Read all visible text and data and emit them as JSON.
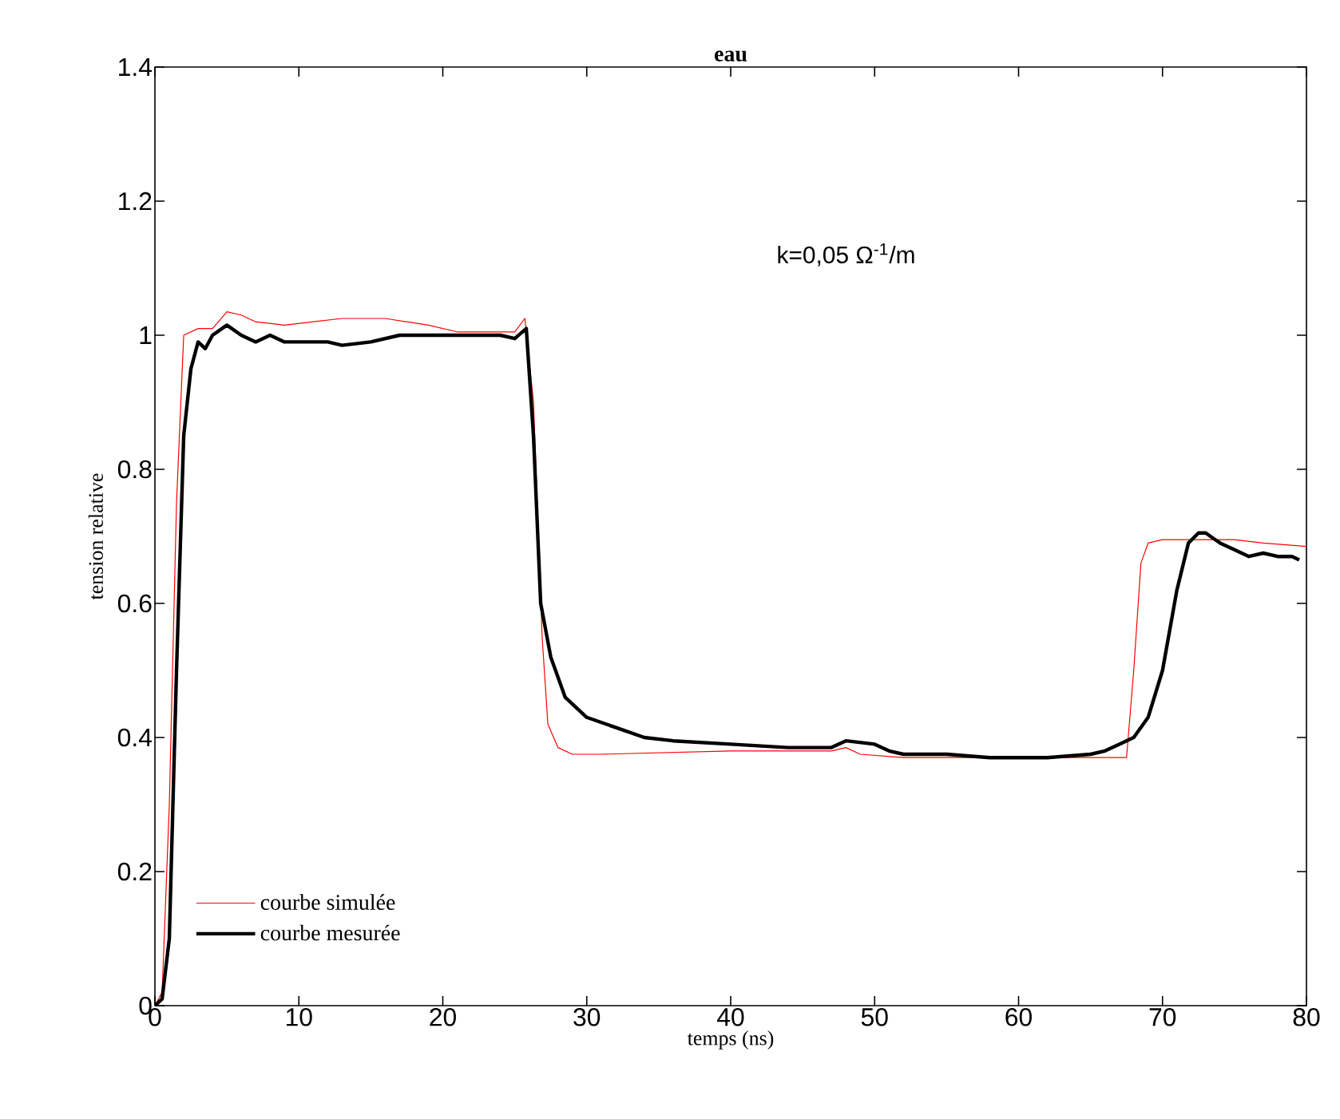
{
  "chart_data": {
    "type": "line",
    "title": "eau",
    "xlabel": "temps (ns)",
    "ylabel": "tension relative",
    "annotations": [
      "k=0,05 Ω$^{-1}$/m"
    ],
    "xlim": [
      0,
      80
    ],
    "ylim": [
      0,
      1.4
    ],
    "xticks": [
      0,
      10,
      20,
      30,
      40,
      50,
      60,
      70,
      80
    ],
    "yticks": [
      0,
      0.2,
      0.4,
      0.6,
      0.8,
      1,
      1.2,
      1.4
    ],
    "grid": false,
    "legend": "bottom left",
    "line_style": "solid",
    "marker": "none",
    "series": [
      {
        "name": "courbe simulée",
        "color": "#ff0000",
        "x": [
          0,
          0.5,
          1,
          1.5,
          2,
          3,
          4,
          5,
          6,
          7,
          9,
          11,
          13,
          16,
          19,
          21,
          24,
          25,
          25.7,
          26.3,
          26.9,
          27.3,
          28,
          29,
          31,
          40,
          47,
          48,
          49,
          52,
          66,
          67.5,
          68,
          68.5,
          69,
          70,
          75,
          77,
          80
        ],
        "values": [
          0,
          0.02,
          0.3,
          0.75,
          1.0,
          1.01,
          1.01,
          1.035,
          1.03,
          1.02,
          1.015,
          1.02,
          1.025,
          1.025,
          1.015,
          1.005,
          1.005,
          1.005,
          1.025,
          0.9,
          0.55,
          0.42,
          0.385,
          0.375,
          0.375,
          0.38,
          0.38,
          0.385,
          0.375,
          0.37,
          0.37,
          0.37,
          0.5,
          0.66,
          0.69,
          0.695,
          0.695,
          0.69,
          0.685
        ]
      },
      {
        "name": "courbe mesurée",
        "color": "#000000",
        "x": [
          0,
          0.5,
          1,
          1.5,
          2,
          2.5,
          3,
          3.5,
          4,
          5,
          6,
          7,
          8,
          9,
          10,
          12,
          13,
          15,
          17,
          20,
          23,
          24,
          25,
          25.8,
          26.3,
          26.8,
          27.5,
          28.5,
          30,
          32,
          34,
          36,
          40,
          44,
          47,
          48,
          50,
          51,
          52,
          55,
          58,
          62,
          65,
          66,
          67,
          68,
          69,
          70,
          71,
          71.8,
          72.5,
          73,
          74,
          75,
          76,
          77,
          78,
          79,
          79.5
        ],
        "values": [
          0,
          0.01,
          0.1,
          0.5,
          0.85,
          0.95,
          0.99,
          0.98,
          1.0,
          1.015,
          1.0,
          0.99,
          1.0,
          0.99,
          0.99,
          0.99,
          0.985,
          0.99,
          1.0,
          1.0,
          1.0,
          1.0,
          0.995,
          1.01,
          0.85,
          0.6,
          0.52,
          0.46,
          0.43,
          0.415,
          0.4,
          0.395,
          0.39,
          0.385,
          0.385,
          0.395,
          0.39,
          0.38,
          0.375,
          0.375,
          0.37,
          0.37,
          0.375,
          0.38,
          0.39,
          0.4,
          0.43,
          0.5,
          0.62,
          0.69,
          0.705,
          0.705,
          0.69,
          0.68,
          0.67,
          0.675,
          0.67,
          0.67,
          0.665
        ]
      }
    ]
  }
}
